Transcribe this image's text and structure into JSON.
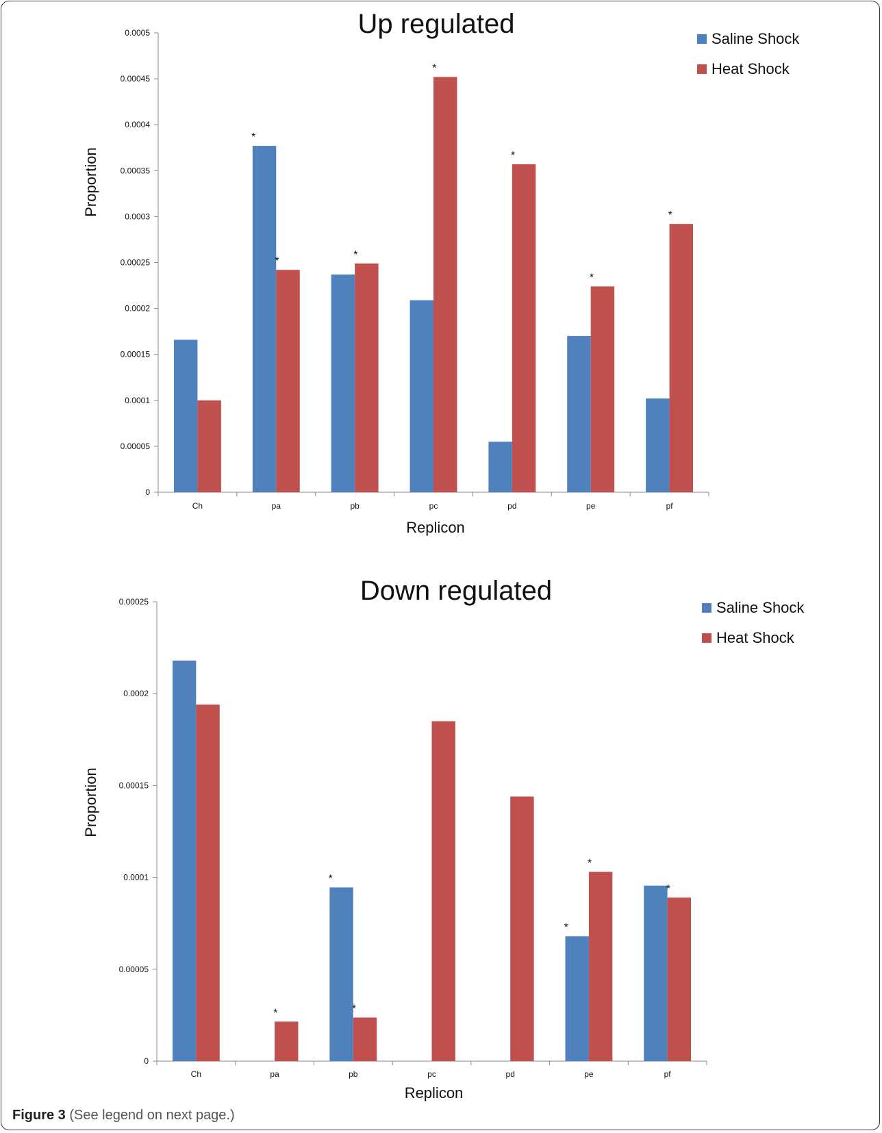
{
  "caption": {
    "figure_label": "Figure 3",
    "text": "(See legend on next page.)"
  },
  "colors": {
    "saline": "#4F81BD",
    "heat": "#C0504D"
  },
  "chart_data": [
    {
      "type": "bar",
      "title": "Up regulated",
      "xlabel": "Replicon",
      "ylabel": "Proportion",
      "ylim": [
        0,
        0.0005
      ],
      "yticks": [
        "0",
        "0.00005",
        "0.0001",
        "0.00015",
        "0.0002",
        "0.00025",
        "0.0003",
        "0.00035",
        "0.0004",
        "0.00045",
        "0.0005"
      ],
      "ytick_values": [
        0,
        5e-05,
        0.0001,
        0.00015,
        0.0002,
        0.00025,
        0.0003,
        0.00035,
        0.0004,
        0.00045,
        0.0005
      ],
      "categories": [
        "Ch",
        "pa",
        "pb",
        "pc",
        "pd",
        "pe",
        "pf"
      ],
      "legend_position": "top-right",
      "series": [
        {
          "name": "Saline Shock",
          "values": [
            0.000166,
            0.000377,
            0.000237,
            0.000209,
            5.5e-05,
            0.00017,
            0.000102
          ],
          "significant": [
            false,
            true,
            false,
            false,
            false,
            false,
            false
          ]
        },
        {
          "name": "Heat Shock",
          "values": [
            0.0001,
            0.000242,
            0.000249,
            0.000452,
            0.000357,
            0.000224,
            0.000292
          ],
          "significant": [
            false,
            true,
            true,
            true,
            true,
            true,
            true
          ]
        }
      ],
      "annotation_symbol": "*"
    },
    {
      "type": "bar",
      "title": "Down regulated",
      "xlabel": "Replicon",
      "ylabel": "Proportion",
      "ylim": [
        0,
        0.00025
      ],
      "yticks": [
        "0",
        "0.00005",
        "0.0001",
        "0.00015",
        "0.0002",
        "0.00025"
      ],
      "ytick_values": [
        0,
        5e-05,
        0.0001,
        0.00015,
        0.0002,
        0.00025
      ],
      "categories": [
        "Ch",
        "pa",
        "pb",
        "pc",
        "pd",
        "pe",
        "pf"
      ],
      "legend_position": "top-right",
      "series": [
        {
          "name": "Saline Shock",
          "values": [
            0.000218,
            0,
            9.45e-05,
            0,
            0,
            6.8e-05,
            9.55e-05
          ],
          "significant": [
            false,
            false,
            true,
            false,
            false,
            true,
            false
          ]
        },
        {
          "name": "Heat Shock",
          "values": [
            0.000194,
            2.15e-05,
            2.37e-05,
            0.000185,
            0.000144,
            0.000103,
            8.9e-05
          ],
          "significant": [
            false,
            true,
            true,
            false,
            false,
            true,
            true
          ]
        }
      ],
      "annotation_symbol": "*"
    }
  ]
}
